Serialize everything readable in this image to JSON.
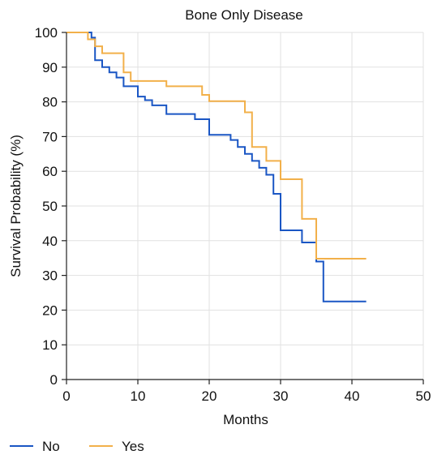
{
  "chart_data": {
    "type": "line",
    "step": true,
    "title": "Bone Only Disease",
    "xlabel": "Months",
    "ylabel": "Survival Probability (%)",
    "xlim": [
      0,
      50
    ],
    "ylim": [
      0,
      100
    ],
    "xticks": [
      0,
      10,
      20,
      30,
      40,
      50
    ],
    "yticks": [
      0,
      10,
      20,
      30,
      40,
      50,
      60,
      70,
      80,
      90,
      100
    ],
    "grid": true,
    "legend_position": "bottom-left",
    "series": [
      {
        "name": "No",
        "color": "#1a56c4",
        "points": [
          [
            0,
            100
          ],
          [
            3.5,
            100
          ],
          [
            3.5,
            98.5
          ],
          [
            4,
            98.5
          ],
          [
            4,
            92
          ],
          [
            5,
            92
          ],
          [
            5,
            90
          ],
          [
            6,
            90
          ],
          [
            6,
            88.5
          ],
          [
            7,
            88.5
          ],
          [
            7,
            87
          ],
          [
            8,
            87
          ],
          [
            8,
            84.5
          ],
          [
            10,
            84.5
          ],
          [
            10,
            81.5
          ],
          [
            11,
            81.5
          ],
          [
            11,
            80.5
          ],
          [
            12,
            80.5
          ],
          [
            12,
            79
          ],
          [
            14,
            79
          ],
          [
            14,
            76.5
          ],
          [
            18,
            76.5
          ],
          [
            18,
            75
          ],
          [
            20,
            75
          ],
          [
            20,
            70.5
          ],
          [
            23,
            70.5
          ],
          [
            23,
            69
          ],
          [
            24,
            69
          ],
          [
            24,
            67
          ],
          [
            25,
            67
          ],
          [
            25,
            65
          ],
          [
            26,
            65
          ],
          [
            26,
            63
          ],
          [
            27,
            63
          ],
          [
            27,
            61
          ],
          [
            28,
            61
          ],
          [
            28,
            59
          ],
          [
            29,
            59
          ],
          [
            29,
            53.5
          ],
          [
            30,
            53.5
          ],
          [
            30,
            43
          ],
          [
            33,
            43
          ],
          [
            33,
            39.5
          ],
          [
            35,
            39.5
          ],
          [
            35,
            34
          ],
          [
            36,
            34
          ],
          [
            36,
            22.5
          ],
          [
            42,
            22.5
          ]
        ]
      },
      {
        "name": "Yes",
        "color": "#f2b04a",
        "points": [
          [
            0,
            100
          ],
          [
            3,
            100
          ],
          [
            3,
            98
          ],
          [
            4,
            98
          ],
          [
            4,
            96
          ],
          [
            5,
            96
          ],
          [
            5,
            94
          ],
          [
            8,
            94
          ],
          [
            8,
            88.5
          ],
          [
            9,
            88.5
          ],
          [
            9,
            86
          ],
          [
            14,
            86
          ],
          [
            14,
            84.5
          ],
          [
            19,
            84.5
          ],
          [
            19,
            82
          ],
          [
            20,
            82
          ],
          [
            20,
            80.2
          ],
          [
            25,
            80.2
          ],
          [
            25,
            77
          ],
          [
            26,
            77
          ],
          [
            26,
            67
          ],
          [
            28,
            67
          ],
          [
            28,
            63
          ],
          [
            30,
            63
          ],
          [
            30,
            57.7
          ],
          [
            33,
            57.7
          ],
          [
            33,
            46.3
          ],
          [
            35,
            46.3
          ],
          [
            35,
            34.8
          ],
          [
            42,
            34.8
          ]
        ]
      }
    ]
  }
}
